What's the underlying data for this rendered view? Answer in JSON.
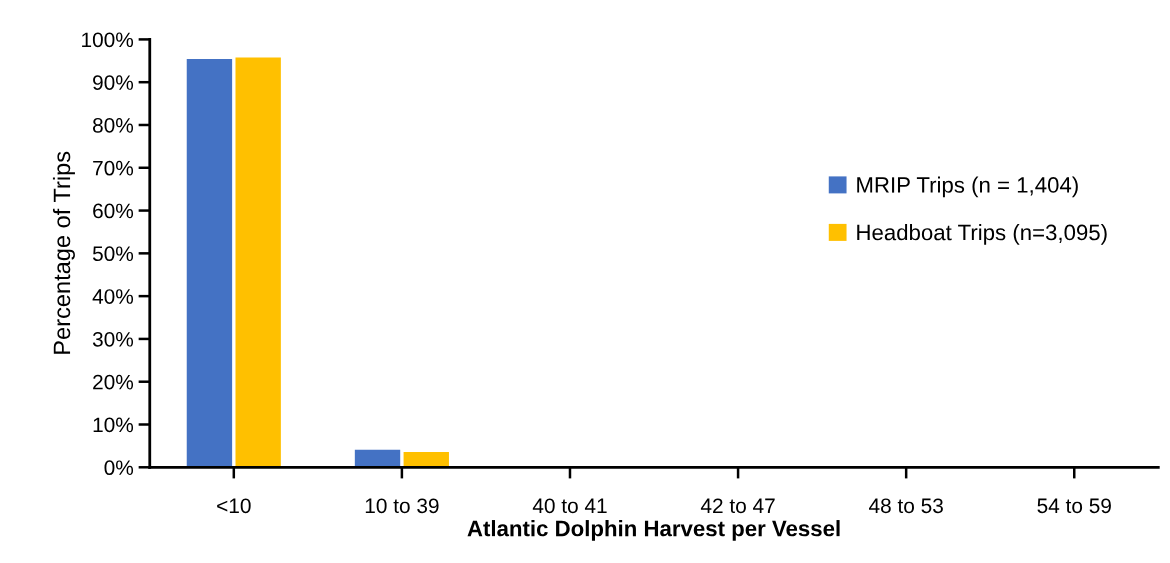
{
  "chart_data": {
    "type": "bar",
    "xlabel": "Atlantic Dolphin Harvest per Vessel",
    "ylabel": "Percentage of Trips",
    "categories": [
      "<10",
      "10 to 39",
      "40 to 41",
      "42 to 47",
      "48 to 53",
      "54 to 59"
    ],
    "series": [
      {
        "name": "MRIP Trips (n = 1,404)",
        "color": "#4472c4",
        "values": [
          95.4,
          4.1,
          0,
          0,
          0,
          0
        ]
      },
      {
        "name": "Headboat Trips (n=3,095)",
        "color": "#ffc000",
        "values": [
          95.8,
          3.6,
          0,
          0,
          0,
          0
        ]
      }
    ],
    "ylim": [
      0,
      100
    ],
    "yticks": [
      {
        "value": 0,
        "label": "0%"
      },
      {
        "value": 10,
        "label": "10%"
      },
      {
        "value": 20,
        "label": "20%"
      },
      {
        "value": 30,
        "label": "30%"
      },
      {
        "value": 40,
        "label": "40%"
      },
      {
        "value": 50,
        "label": "50%"
      },
      {
        "value": 60,
        "label": "60%"
      },
      {
        "value": 70,
        "label": "70%"
      },
      {
        "value": 80,
        "label": "80%"
      },
      {
        "value": 90,
        "label": "90%"
      },
      {
        "value": 100,
        "label": "100%"
      }
    ],
    "grid": false,
    "legend": "right"
  }
}
